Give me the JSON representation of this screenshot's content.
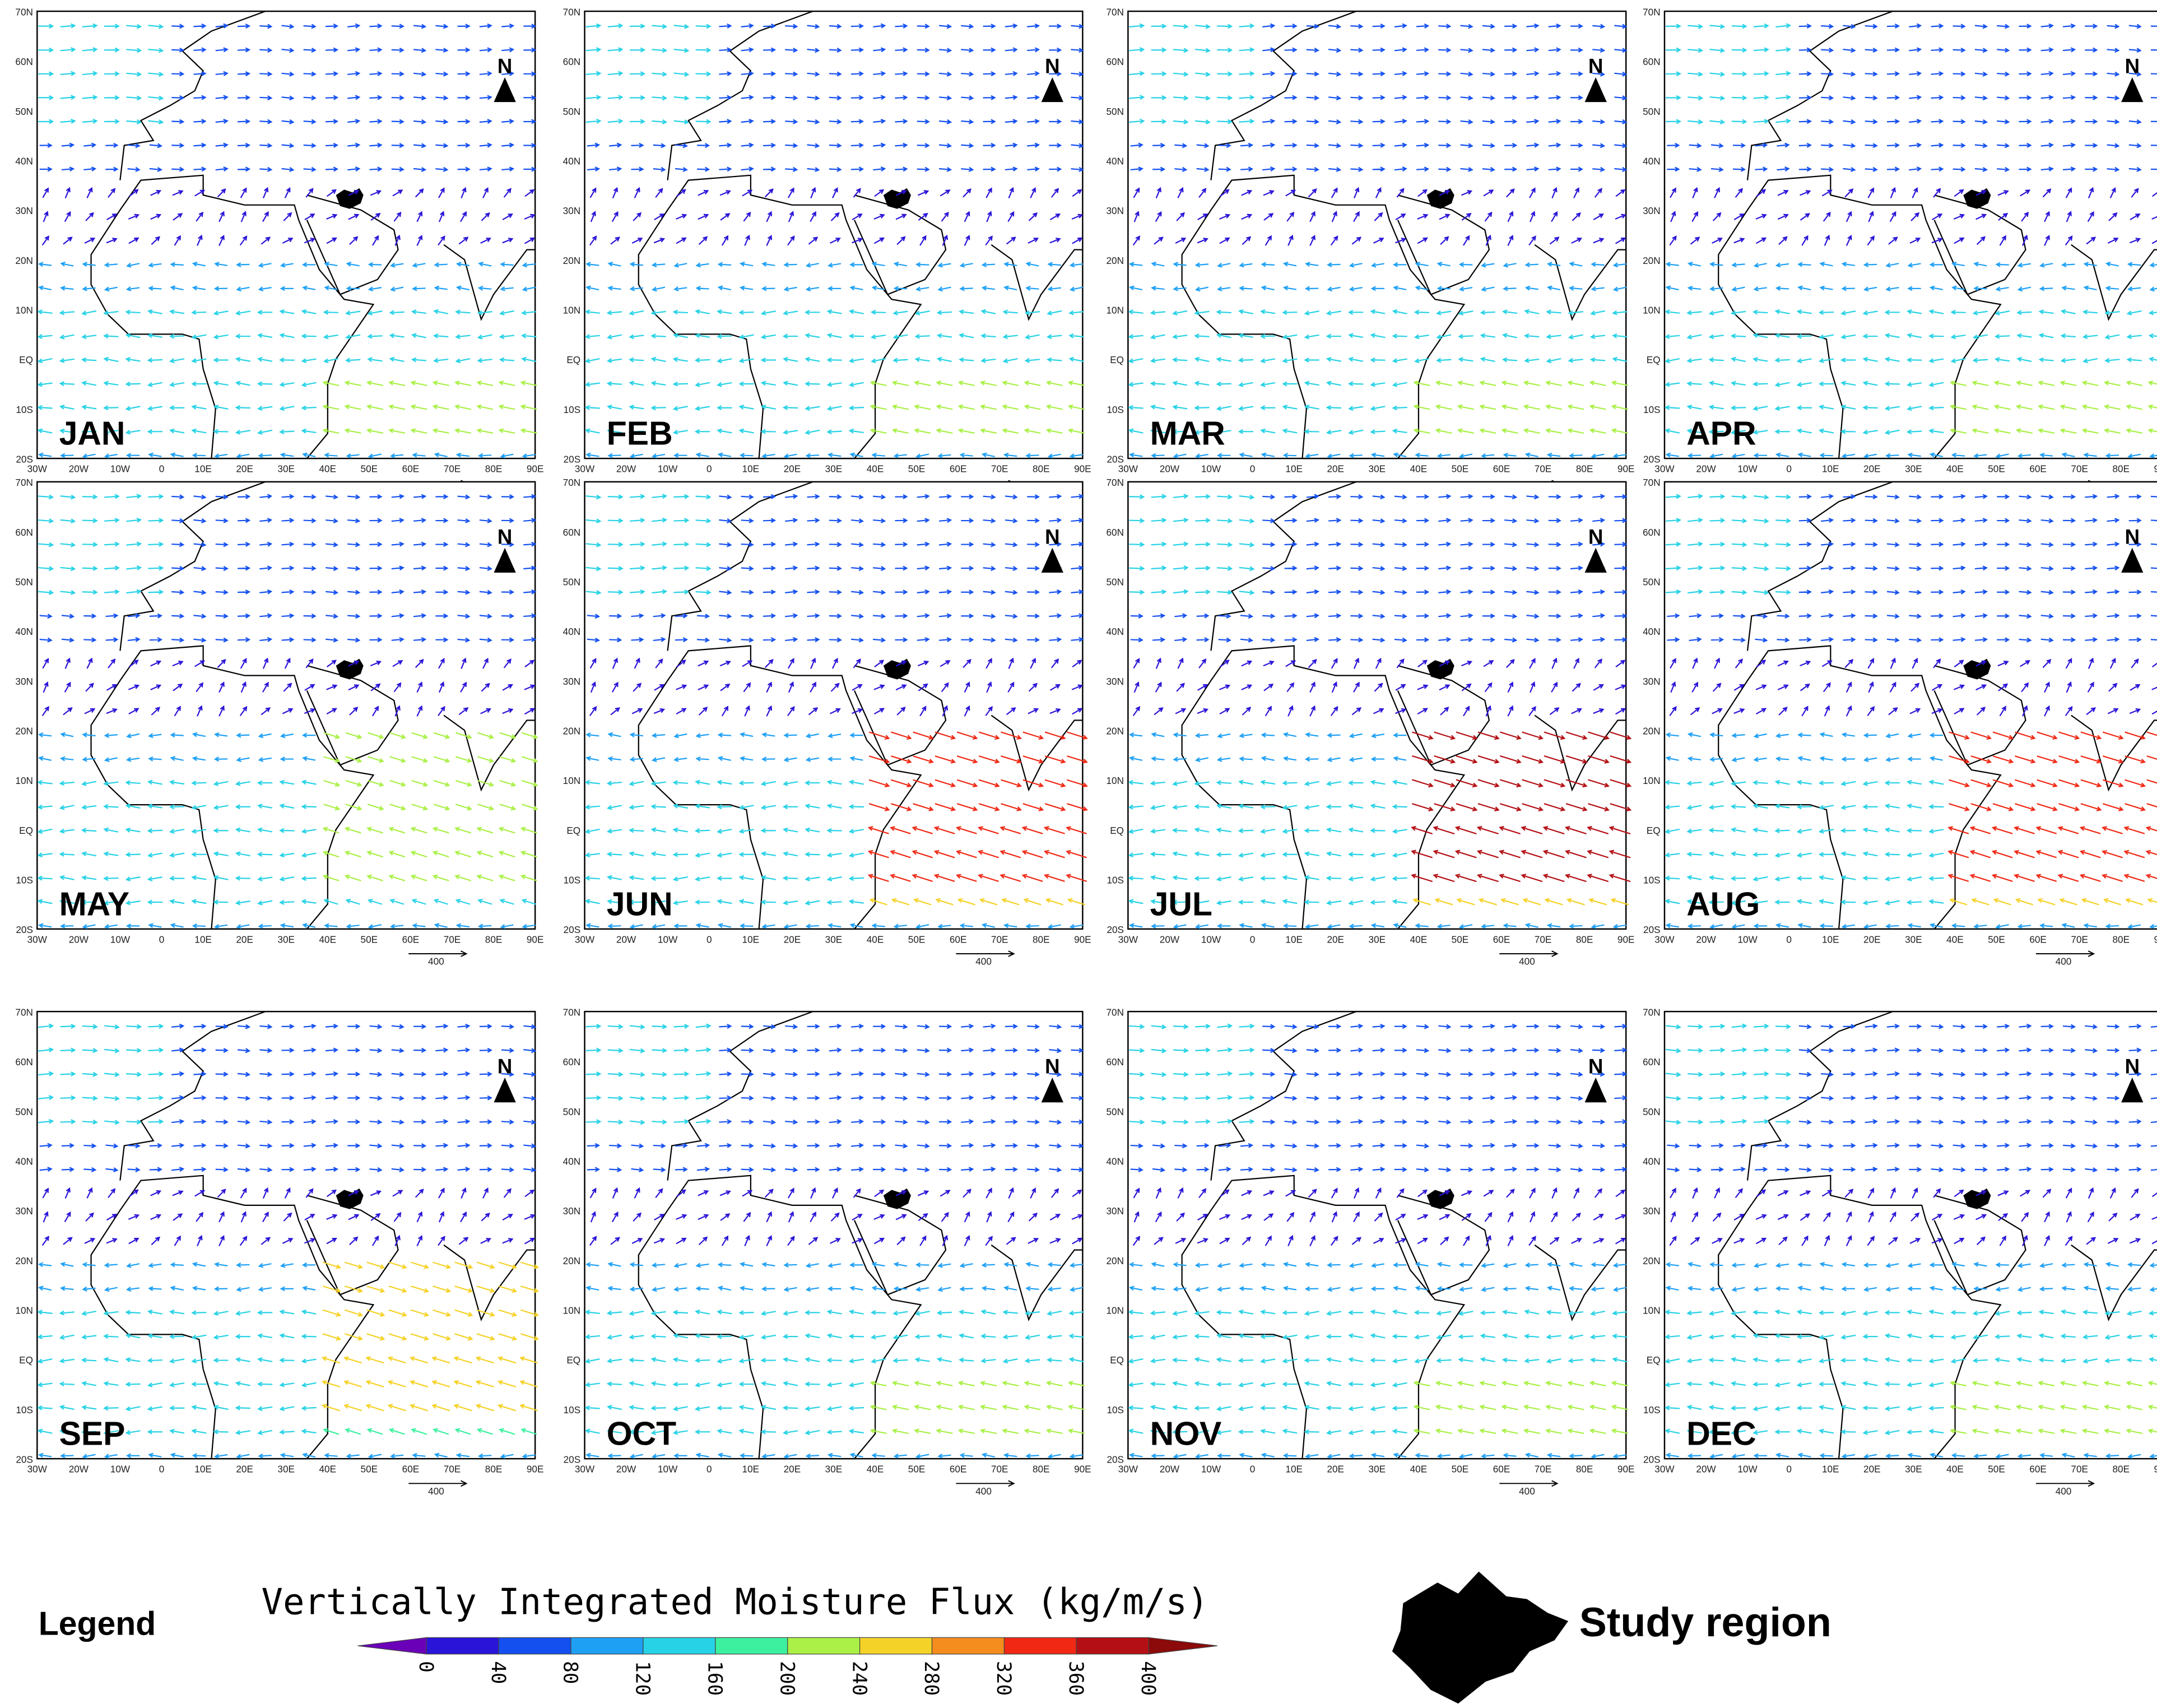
{
  "panels": [
    {
      "label": "JAN"
    },
    {
      "label": "FEB"
    },
    {
      "label": "MAR"
    },
    {
      "label": "APR"
    },
    {
      "label": "MAY"
    },
    {
      "label": "JUN"
    },
    {
      "label": "JUL"
    },
    {
      "label": "AUG"
    },
    {
      "label": "SEP"
    },
    {
      "label": "OCT"
    },
    {
      "label": "NOV"
    },
    {
      "label": "DEC"
    }
  ],
  "x_axis_labels": [
    "30W",
    "20W",
    "10W",
    "0",
    "10E",
    "20E",
    "30E",
    "40E",
    "50E",
    "60E",
    "70E",
    "80E",
    "90E"
  ],
  "y_axis_labels": [
    "70N",
    "60N",
    "50N",
    "40N",
    "30N",
    "20N",
    "10N",
    "EQ",
    "10S",
    "20S"
  ],
  "north_label": "N",
  "scale_label": "400",
  "legend": {
    "heading": "Legend",
    "title": "Vertically Integrated Moisture Flux (kg/m/s)",
    "ticks": [
      "0",
      "40",
      "80",
      "120",
      "160",
      "200",
      "240",
      "280",
      "320",
      "360",
      "400"
    ],
    "colors": [
      "#6a00b8",
      "#2a14d8",
      "#1450f0",
      "#1ea0f5",
      "#28d2e6",
      "#3cf0a0",
      "#aaf046",
      "#f5d228",
      "#f58c1e",
      "#f02814",
      "#b40f14",
      "#8c0a0a"
    ],
    "study_region": "Study region"
  }
}
